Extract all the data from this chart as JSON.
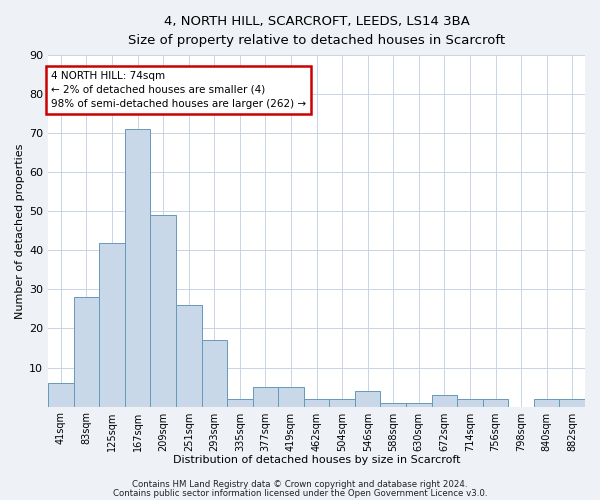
{
  "title1": "4, NORTH HILL, SCARCROFT, LEEDS, LS14 3BA",
  "title2": "Size of property relative to detached houses in Scarcroft",
  "xlabel": "Distribution of detached houses by size in Scarcroft",
  "ylabel": "Number of detached properties",
  "categories": [
    "41sqm",
    "83sqm",
    "125sqm",
    "167sqm",
    "209sqm",
    "251sqm",
    "293sqm",
    "335sqm",
    "377sqm",
    "419sqm",
    "462sqm",
    "504sqm",
    "546sqm",
    "588sqm",
    "630sqm",
    "672sqm",
    "714sqm",
    "756sqm",
    "798sqm",
    "840sqm",
    "882sqm"
  ],
  "values": [
    6,
    28,
    42,
    71,
    49,
    26,
    17,
    2,
    5,
    5,
    2,
    2,
    4,
    1,
    1,
    3,
    2,
    2,
    0,
    2,
    2
  ],
  "bar_color": "#c8d8e8",
  "bar_edge_color": "#6699bb",
  "annotation_text": "4 NORTH HILL: 74sqm\n← 2% of detached houses are smaller (4)\n98% of semi-detached houses are larger (262) →",
  "annotation_box_color": "#ffffff",
  "annotation_box_edge_color": "#cc0000",
  "ylim": [
    0,
    90
  ],
  "yticks": [
    0,
    10,
    20,
    30,
    40,
    50,
    60,
    70,
    80,
    90
  ],
  "footer1": "Contains HM Land Registry data © Crown copyright and database right 2024.",
  "footer2": "Contains public sector information licensed under the Open Government Licence v3.0.",
  "bg_color": "#eef2f7",
  "plot_bg_color": "#ffffff",
  "grid_color": "#c8d4e4"
}
